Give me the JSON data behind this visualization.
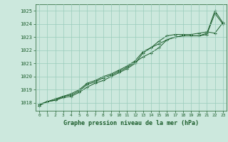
{
  "title": "Graphe pression niveau de la mer (hPa)",
  "background_color": "#cce8dd",
  "grid_color": "#99ccbb",
  "line_color": "#1a5c2a",
  "x_ticks": [
    0,
    1,
    2,
    3,
    4,
    5,
    6,
    7,
    8,
    9,
    10,
    11,
    12,
    13,
    14,
    15,
    16,
    17,
    18,
    19,
    20,
    21,
    22,
    23
  ],
  "y_ticks": [
    1018,
    1019,
    1020,
    1021,
    1022,
    1023,
    1024,
    1025
  ],
  "ylim": [
    1017.4,
    1025.5
  ],
  "xlim": [
    -0.5,
    23.5
  ],
  "line1": [
    1017.8,
    1018.1,
    1018.2,
    1018.4,
    1018.5,
    1018.8,
    1019.2,
    1019.5,
    1019.7,
    1020.0,
    1020.3,
    1020.6,
    1021.0,
    1021.8,
    1022.2,
    1022.5,
    1022.8,
    1023.0,
    1023.1,
    1023.1,
    1023.1,
    1023.3,
    1025.0,
    1024.1
  ],
  "line2": [
    1017.8,
    1018.1,
    1018.2,
    1018.5,
    1018.6,
    1018.9,
    1019.4,
    1019.6,
    1019.9,
    1020.1,
    1020.4,
    1020.7,
    1021.1,
    1021.5,
    1021.8,
    1022.2,
    1022.8,
    1023.0,
    1023.1,
    1023.1,
    1023.1,
    1023.2,
    1024.8,
    1024.0
  ],
  "line3": [
    1017.9,
    1018.1,
    1018.3,
    1018.5,
    1018.7,
    1019.0,
    1019.5,
    1019.7,
    1020.0,
    1020.2,
    1020.5,
    1020.8,
    1021.2,
    1021.9,
    1022.2,
    1022.7,
    1023.1,
    1023.2,
    1023.2,
    1023.2,
    1023.3,
    1023.4,
    1023.3,
    1024.1
  ]
}
